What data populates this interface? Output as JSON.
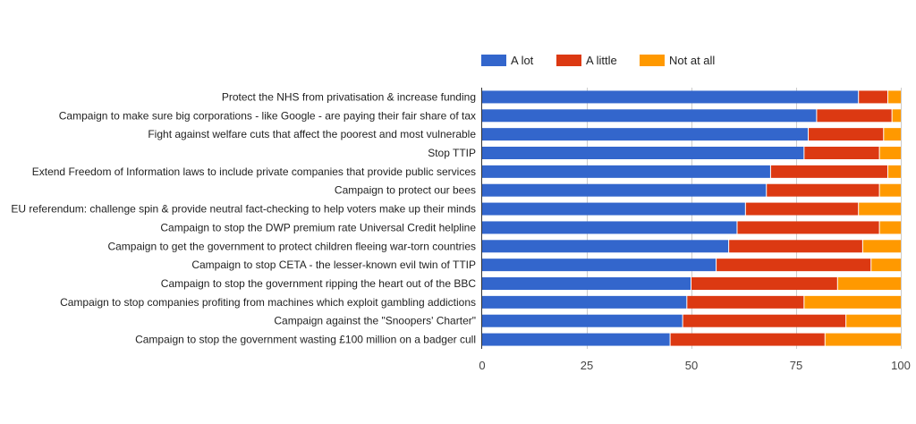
{
  "chart_data": {
    "type": "bar",
    "orientation": "horizontal",
    "stacked": true,
    "title": "",
    "xlabel": "",
    "ylabel": "",
    "xlim": [
      0,
      100
    ],
    "xticks": [
      "0",
      "25",
      "50",
      "75",
      "100"
    ],
    "grid": true,
    "legend_position": "top",
    "categories": [
      "Protect the NHS from privatisation & increase funding",
      "Campaign to make sure big corporations - like Google - are paying their fair share of tax",
      "Fight against welfare cuts that affect the poorest and most vulnerable",
      "Stop TTIP",
      "Extend Freedom of Information laws to include private companies that provide public services",
      "Campaign to protect our bees",
      "EU referendum: challenge spin & provide neutral fact-checking to help voters make up their minds",
      "Campaign to stop the DWP premium rate Universal Credit helpline",
      "Campaign to get the government to protect children fleeing war-torn countries",
      "Campaign to stop CETA - the lesser-known evil twin of TTIP",
      "Campaign to stop the government ripping the heart out of the BBC",
      "Campaign to stop companies profiting from machines which exploit gambling addictions",
      "Campaign against the \"Snoopers' Charter\"",
      "Campaign to stop the government wasting £100 million on a badger cull"
    ],
    "series": [
      {
        "name": "A lot",
        "color": "#3366cc",
        "values": [
          90,
          80,
          78,
          77,
          69,
          68,
          63,
          61,
          59,
          56,
          50,
          49,
          48,
          45
        ]
      },
      {
        "name": "A little",
        "color": "#dc3912",
        "values": [
          7,
          18,
          18,
          18,
          28,
          27,
          27,
          34,
          32,
          37,
          35,
          28,
          39,
          37
        ]
      },
      {
        "name": "Not at all",
        "color": "#ff9900",
        "values": [
          3,
          2,
          4,
          5,
          3,
          5,
          10,
          5,
          9,
          7,
          15,
          23,
          13,
          18
        ]
      }
    ]
  }
}
